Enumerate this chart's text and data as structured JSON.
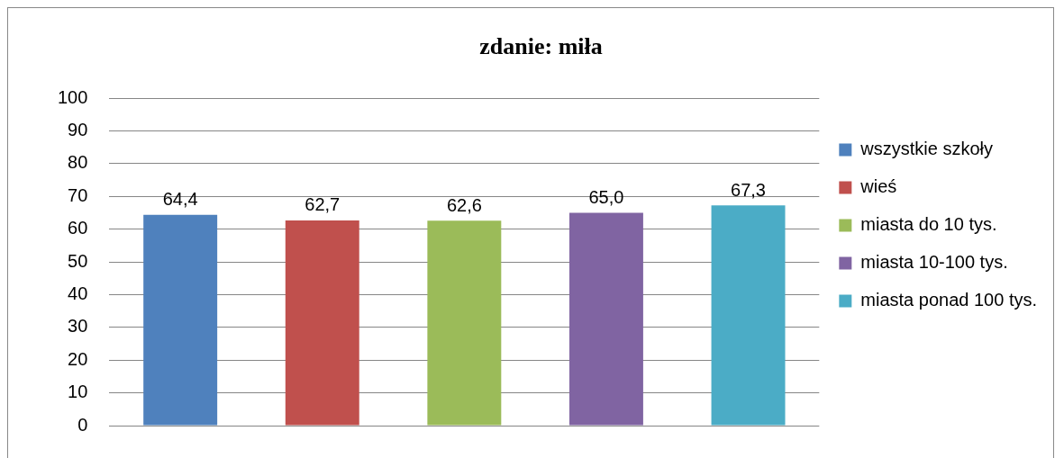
{
  "chart_data": {
    "type": "bar",
    "title": "zdanie: miła",
    "categories": [
      null
    ],
    "series": [
      {
        "name": "wszystkie szkoły",
        "color": "#4f81bd",
        "values": [
          64.4
        ],
        "value_labels": [
          "64,4"
        ]
      },
      {
        "name": "wieś",
        "color": "#c0504d",
        "values": [
          62.7
        ],
        "value_labels": [
          "62,7"
        ]
      },
      {
        "name": "miasta do 10 tys.",
        "color": "#9bbb59",
        "values": [
          62.6
        ],
        "value_labels": [
          "62,6"
        ]
      },
      {
        "name": "miasta 10-100 tys.",
        "color": "#8064a2",
        "values": [
          65.0
        ],
        "value_labels": [
          "65,0"
        ]
      },
      {
        "name": "miasta ponad 100 tys.",
        "color": "#4bacc6",
        "values": [
          67.3
        ],
        "value_labels": [
          "67,3"
        ]
      }
    ],
    "ylim": [
      0,
      100
    ],
    "yticks": [
      0,
      10,
      20,
      30,
      40,
      50,
      60,
      70,
      80,
      90,
      100
    ],
    "grid": "y",
    "legend": "right",
    "tick_labels": "y"
  }
}
